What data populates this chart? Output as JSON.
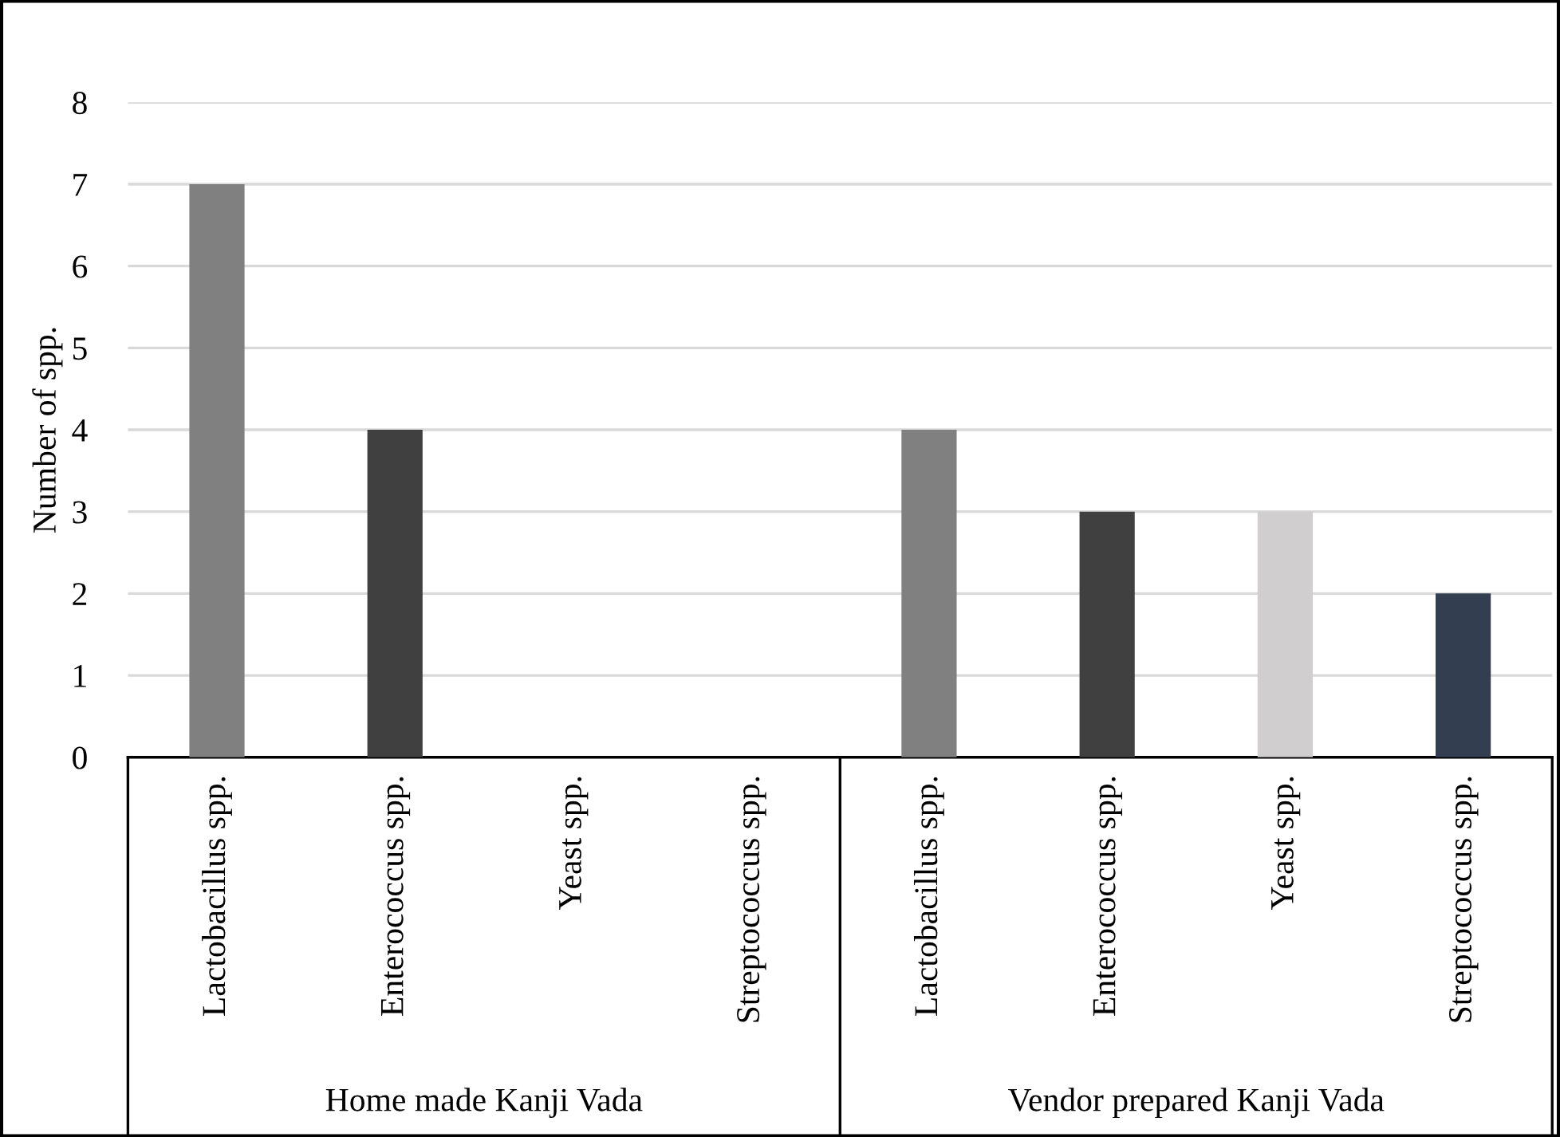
{
  "chart_data": {
    "type": "bar",
    "ylabel": "Number of spp.",
    "categories": [
      "Lactobacillus spp.",
      "Enterococcus spp.",
      "Yeast spp.",
      "Streptococcus spp.",
      "Lactobacillus spp.",
      "Enterococcus spp.",
      "Yeast spp.",
      "Streptococcus spp."
    ],
    "values": [
      7,
      4,
      0,
      0,
      4,
      3,
      3,
      2
    ],
    "colors": [
      "#808080",
      "#404040",
      "#d0cecf",
      "#333f50",
      "#808080",
      "#404040",
      "#d0cecf",
      "#333f50"
    ],
    "ylim": [
      0,
      8
    ],
    "yticks": [
      0,
      1,
      2,
      3,
      4,
      5,
      6,
      7,
      8
    ],
    "grid": "y",
    "legend": false,
    "annotations": [
      "Home made Kanji Vada",
      "Vendor prepared Kanji Vada"
    ]
  }
}
